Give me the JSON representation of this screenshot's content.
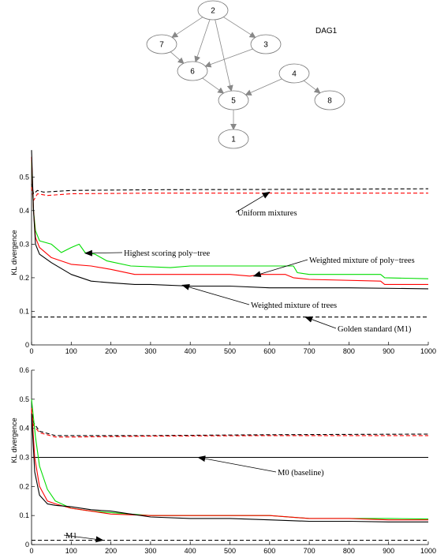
{
  "dag": {
    "title": "DAG1",
    "nodes": [
      {
        "id": "2",
        "label": "2"
      },
      {
        "id": "7",
        "label": "7"
      },
      {
        "id": "3",
        "label": "3"
      },
      {
        "id": "6",
        "label": "6"
      },
      {
        "id": "4",
        "label": "4"
      },
      {
        "id": "5",
        "label": "5"
      },
      {
        "id": "8",
        "label": "8"
      },
      {
        "id": "1",
        "label": "1"
      }
    ],
    "edges": [
      [
        "2",
        "7"
      ],
      [
        "2",
        "6"
      ],
      [
        "2",
        "3"
      ],
      [
        "2",
        "5"
      ],
      [
        "7",
        "6"
      ],
      [
        "3",
        "6"
      ],
      [
        "6",
        "5"
      ],
      [
        "4",
        "5"
      ],
      [
        "4",
        "8"
      ],
      [
        "5",
        "1"
      ]
    ]
  },
  "chart_data": [
    {
      "type": "line",
      "ylabel": "KL divergence",
      "xlim": [
        0,
        1000
      ],
      "ylim": [
        0,
        0.55
      ],
      "x_ticks": [
        "0",
        "100",
        "200",
        "300",
        "400",
        "500",
        "600",
        "700",
        "800",
        "900",
        "1000"
      ],
      "y_ticks": [
        "0",
        "0.1",
        "0.2",
        "0.3",
        "0.4",
        "0.5"
      ],
      "series": [
        {
          "color": "#000000",
          "style": "dashed",
          "points": [
            [
              0,
              0.48
            ],
            [
              5,
              0.45
            ],
            [
              15,
              0.46
            ],
            [
              30,
              0.455
            ],
            [
              100,
              0.46
            ],
            [
              300,
              0.462
            ],
            [
              600,
              0.463
            ],
            [
              1000,
              0.465
            ]
          ]
        },
        {
          "color": "#ff0000",
          "style": "dashed",
          "points": [
            [
              0,
              0.47
            ],
            [
              5,
              0.43
            ],
            [
              15,
              0.45
            ],
            [
              40,
              0.445
            ],
            [
              100,
              0.45
            ],
            [
              300,
              0.452
            ],
            [
              600,
              0.452
            ],
            [
              1000,
              0.452
            ]
          ]
        },
        {
          "color": "#00dd00",
          "style": "solid",
          "points": [
            [
              0,
              0.55
            ],
            [
              5,
              0.4
            ],
            [
              10,
              0.34
            ],
            [
              20,
              0.31
            ],
            [
              50,
              0.3
            ],
            [
              75,
              0.275
            ],
            [
              100,
              0.29
            ],
            [
              120,
              0.3
            ],
            [
              135,
              0.275
            ],
            [
              160,
              0.27
            ],
            [
              190,
              0.25
            ],
            [
              250,
              0.235
            ],
            [
              350,
              0.23
            ],
            [
              400,
              0.235
            ],
            [
              550,
              0.235
            ],
            [
              660,
              0.235
            ],
            [
              670,
              0.215
            ],
            [
              700,
              0.21
            ],
            [
              880,
              0.21
            ],
            [
              890,
              0.2
            ],
            [
              1000,
              0.197
            ]
          ]
        },
        {
          "color": "#ff0000",
          "style": "solid",
          "points": [
            [
              0,
              0.56
            ],
            [
              5,
              0.4
            ],
            [
              10,
              0.32
            ],
            [
              20,
              0.29
            ],
            [
              50,
              0.26
            ],
            [
              100,
              0.24
            ],
            [
              150,
              0.235
            ],
            [
              200,
              0.225
            ],
            [
              260,
              0.21
            ],
            [
              400,
              0.21
            ],
            [
              500,
              0.21
            ],
            [
              550,
              0.205
            ],
            [
              580,
              0.21
            ],
            [
              640,
              0.21
            ],
            [
              660,
              0.2
            ],
            [
              700,
              0.195
            ],
            [
              880,
              0.19
            ],
            [
              890,
              0.18
            ],
            [
              1000,
              0.18
            ]
          ]
        },
        {
          "color": "#000000",
          "style": "solid",
          "points": [
            [
              0,
              0.58
            ],
            [
              5,
              0.4
            ],
            [
              10,
              0.3
            ],
            [
              20,
              0.27
            ],
            [
              50,
              0.245
            ],
            [
              100,
              0.21
            ],
            [
              150,
              0.19
            ],
            [
              200,
              0.185
            ],
            [
              260,
              0.18
            ],
            [
              300,
              0.18
            ],
            [
              400,
              0.175
            ],
            [
              500,
              0.175
            ],
            [
              600,
              0.17
            ],
            [
              700,
              0.17
            ],
            [
              800,
              0.17
            ],
            [
              1000,
              0.167
            ]
          ]
        },
        {
          "color": "#000000",
          "style": "dashed",
          "points": [
            [
              0,
              0.083
            ],
            [
              1000,
              0.083
            ]
          ]
        }
      ],
      "annotations": [
        {
          "text": "Uniform mixtures",
          "point": [
            600,
            0.455
          ]
        },
        {
          "text": "Highest scoring poly−tree",
          "point": [
            135,
            0.273
          ]
        },
        {
          "text": "Weighted mixture of poly−trees",
          "point": [
            560,
            0.205
          ]
        },
        {
          "text": "Weighted mixture of trees",
          "point": [
            380,
            0.178
          ]
        },
        {
          "text": "Golden standard (M1)",
          "point": [
            690,
            0.083
          ]
        }
      ]
    },
    {
      "type": "line",
      "ylabel": "KL divergence",
      "xlim": [
        0,
        1000
      ],
      "ylim": [
        0,
        0.6
      ],
      "x_ticks": [
        "0",
        "100",
        "200",
        "300",
        "400",
        "500",
        "600",
        "700",
        "800",
        "900",
        "1000"
      ],
      "y_ticks": [
        "0",
        "0.1",
        "0.2",
        "0.3",
        "0.4",
        "0.5",
        "0.6"
      ],
      "series": [
        {
          "color": "#000000",
          "style": "dashed",
          "points": [
            [
              0,
              0.47
            ],
            [
              5,
              0.42
            ],
            [
              20,
              0.39
            ],
            [
              60,
              0.375
            ],
            [
              100,
              0.375
            ],
            [
              300,
              0.375
            ],
            [
              600,
              0.378
            ],
            [
              1000,
              0.38
            ]
          ]
        },
        {
          "color": "#ff0000",
          "style": "dashed",
          "points": [
            [
              0,
              0.46
            ],
            [
              5,
              0.41
            ],
            [
              20,
              0.385
            ],
            [
              60,
              0.37
            ],
            [
              100,
              0.37
            ],
            [
              300,
              0.373
            ],
            [
              600,
              0.375
            ],
            [
              1000,
              0.375
            ]
          ]
        },
        {
          "color": "#000000",
          "style": "solid",
          "points": [
            [
              0,
              0.3
            ],
            [
              1000,
              0.3
            ]
          ]
        },
        {
          "color": "#00dd00",
          "style": "solid",
          "points": [
            [
              0,
              0.5
            ],
            [
              10,
              0.37
            ],
            [
              20,
              0.27
            ],
            [
              40,
              0.19
            ],
            [
              60,
              0.15
            ],
            [
              100,
              0.125
            ],
            [
              150,
              0.115
            ],
            [
              200,
              0.11
            ],
            [
              300,
              0.1
            ],
            [
              400,
              0.1
            ],
            [
              500,
              0.1
            ],
            [
              600,
              0.1
            ],
            [
              700,
              0.09
            ],
            [
              800,
              0.09
            ],
            [
              900,
              0.09
            ],
            [
              1000,
              0.088
            ]
          ]
        },
        {
          "color": "#ff0000",
          "style": "solid",
          "points": [
            [
              0,
              0.47
            ],
            [
              8,
              0.3
            ],
            [
              20,
              0.2
            ],
            [
              40,
              0.15
            ],
            [
              60,
              0.14
            ],
            [
              100,
              0.125
            ],
            [
              150,
              0.115
            ],
            [
              200,
              0.105
            ],
            [
              300,
              0.1
            ],
            [
              400,
              0.1
            ],
            [
              500,
              0.1
            ],
            [
              600,
              0.1
            ],
            [
              700,
              0.09
            ],
            [
              800,
              0.09
            ],
            [
              900,
              0.085
            ],
            [
              1000,
              0.085
            ]
          ]
        },
        {
          "color": "#000000",
          "style": "solid",
          "points": [
            [
              0,
              0.45
            ],
            [
              8,
              0.25
            ],
            [
              20,
              0.17
            ],
            [
              40,
              0.14
            ],
            [
              60,
              0.135
            ],
            [
              100,
              0.13
            ],
            [
              150,
              0.12
            ],
            [
              200,
              0.115
            ],
            [
              250,
              0.105
            ],
            [
              300,
              0.095
            ],
            [
              400,
              0.09
            ],
            [
              500,
              0.09
            ],
            [
              600,
              0.085
            ],
            [
              700,
              0.08
            ],
            [
              800,
              0.08
            ],
            [
              900,
              0.078
            ],
            [
              1000,
              0.078
            ]
          ]
        },
        {
          "color": "#000000",
          "style": "dashed",
          "points": [
            [
              0,
              0.015
            ],
            [
              1000,
              0.015
            ]
          ]
        }
      ],
      "annotations": [
        {
          "text": "M0 (baseline)",
          "point": [
            420,
            0.3
          ]
        },
        {
          "text": "M1",
          "point": [
            180,
            0.015
          ]
        }
      ]
    }
  ]
}
